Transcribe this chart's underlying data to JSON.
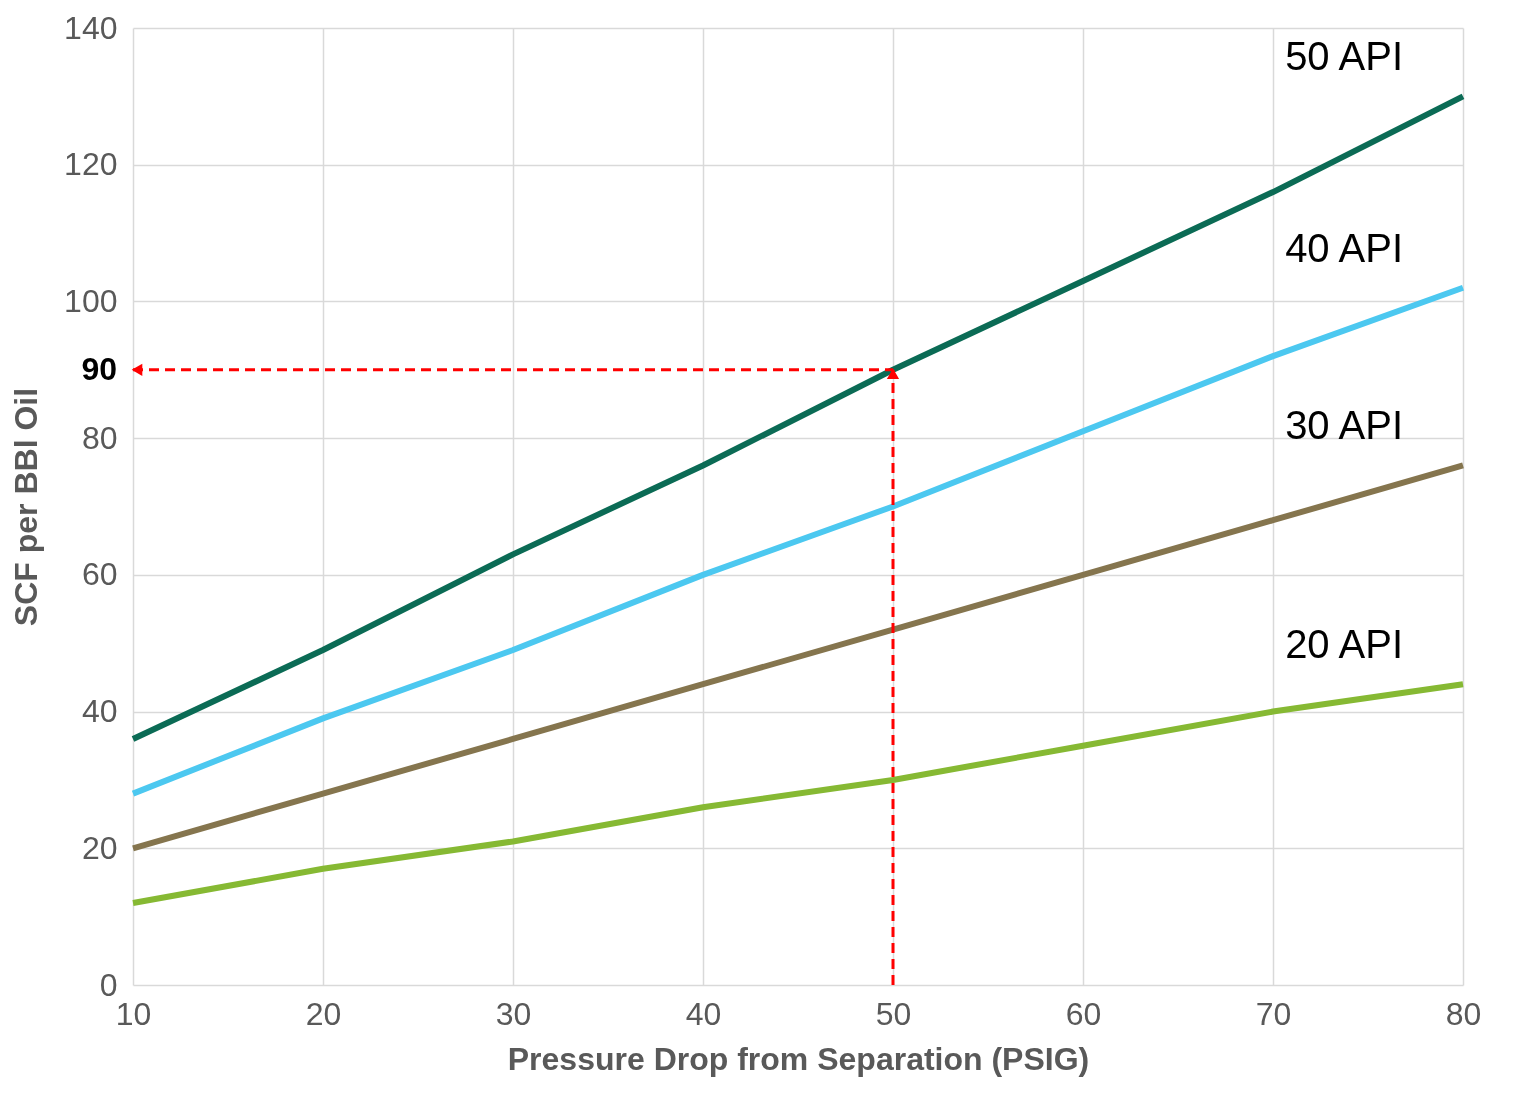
{
  "chart_data": {
    "type": "line",
    "xlabel": "Pressure Drop from Separation (PSIG)",
    "ylabel": "SCF per BBl Oil",
    "x": [
      10,
      20,
      30,
      40,
      50,
      60,
      70,
      80
    ],
    "series": [
      {
        "name": "50 API",
        "color": "#0b6b55",
        "values": [
          36,
          49,
          63,
          76,
          90,
          103,
          116,
          130
        ]
      },
      {
        "name": "40 API",
        "color": "#4cc8f0",
        "values": [
          28,
          39,
          49,
          60,
          70,
          81,
          92,
          102
        ]
      },
      {
        "name": "30 API",
        "color": "#85754e",
        "values": [
          20,
          28,
          36,
          44,
          52,
          60,
          68,
          76
        ]
      },
      {
        "name": "20 API",
        "color": "#86b933",
        "values": [
          12,
          17,
          21,
          26,
          30,
          35,
          40,
          44
        ]
      }
    ],
    "xlim": [
      10,
      80
    ],
    "xticks": [
      10,
      20,
      30,
      40,
      50,
      60,
      70,
      80
    ],
    "ylim": [
      0,
      140
    ],
    "yticks": [
      0,
      20,
      40,
      60,
      80,
      100,
      120,
      140
    ],
    "grid": true,
    "legend": false,
    "marker": "none",
    "line_style": "solid",
    "ref_lines": [
      {
        "axis": "y",
        "value": 90,
        "label": "90",
        "color": "#ff0000",
        "line_style": "dashed"
      },
      {
        "axis": "x",
        "value": 50,
        "color": "#ff0000",
        "line_style": "dashed"
      }
    ]
  }
}
